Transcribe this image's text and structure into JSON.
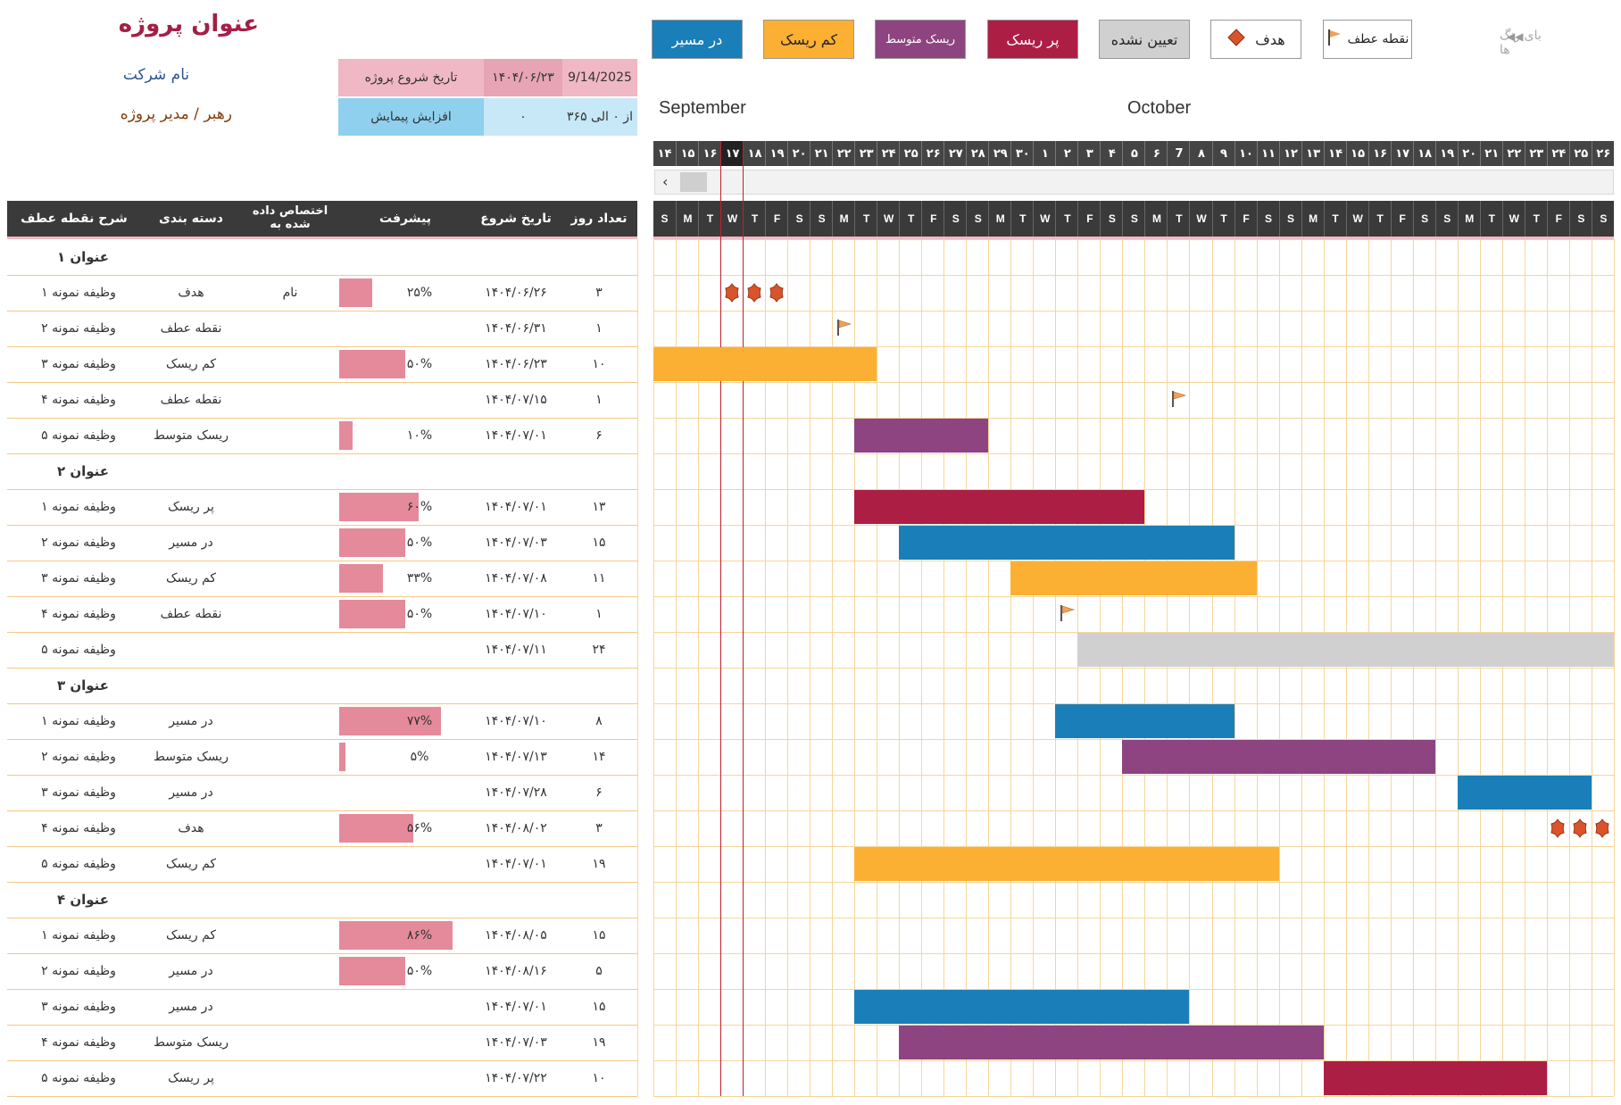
{
  "header": {
    "title": "عنوان پروژه",
    "company": "نام شرکت",
    "manager": "رهبر / مدیر  پروژه"
  },
  "info": {
    "start_label": "تاریخ شروع پروژه",
    "start_shamsi": "۱۴۰۴/۰۶/۲۳",
    "start_gregorian": "9/14/2025",
    "increment_label": "افزایش پیمایش",
    "increment_value": "۰",
    "range_text": "از ۰ الی ۳۶۵"
  },
  "legend": {
    "faded_label": "بای رنگ ها",
    "faded_arrows": "◀◀",
    "items": [
      {
        "label": "در مسیر",
        "bg": "#1a7fb8",
        "color": "#ffffff",
        "name": "legend-on-track"
      },
      {
        "label": "کم ریسک",
        "bg": "#fbb034",
        "color": "#222222",
        "name": "legend-low-risk"
      },
      {
        "label": "ریسک متوسط",
        "bg": "#8e4480",
        "color": "#ffffff",
        "name": "legend-medium-risk"
      },
      {
        "label": "پر ریسک",
        "bg": "#ad1e45",
        "color": "#ffffff",
        "name": "legend-high-risk"
      },
      {
        "label": "تعیین نشده",
        "bg": "#d0d0d0",
        "color": "#222222",
        "name": "legend-unassigned"
      },
      {
        "label": "هدف",
        "bg": "#ffffff",
        "color": "#222222",
        "name": "legend-goal",
        "icon": "diamond"
      },
      {
        "label": "نقطه عطف",
        "bg": "#ffffff",
        "color": "#222222",
        "name": "legend-milestone",
        "icon": "flag"
      }
    ]
  },
  "months": [
    {
      "label": "September",
      "bg": "#fde9cd"
    },
    {
      "label": "October",
      "bg": "#fdd99b"
    }
  ],
  "days": [
    "۱۴",
    "۱۵",
    "۱۶",
    "۱۷",
    "۱۸",
    "۱۹",
    "۲۰",
    "۲۱",
    "۲۲",
    "۲۳",
    "۲۴",
    "۲۵",
    "۲۶",
    "۲۷",
    "۲۸",
    "۲۹",
    "۳۰",
    "۱",
    "۲",
    "۳",
    "۴",
    "۵",
    "۶",
    "7",
    "۸",
    "۹",
    "۱۰",
    "۱۱",
    "۱۲",
    "۱۳",
    "۱۴",
    "۱۵",
    "۱۶",
    "۱۷",
    "۱۸",
    "۱۹",
    "۲۰",
    "۲۱",
    "۲۲",
    "۲۳",
    "۲۴",
    "۲۵",
    "۲۶"
  ],
  "weekdays": [
    "S",
    "M",
    "T",
    "W",
    "T",
    "F",
    "S",
    "S",
    "M",
    "T",
    "W",
    "T",
    "F",
    "S",
    "S",
    "M",
    "T",
    "W",
    "T",
    "F",
    "S",
    "S",
    "M",
    "T",
    "W",
    "T",
    "F",
    "S",
    "S",
    "M",
    "T",
    "W",
    "T",
    "F",
    "S",
    "S",
    "M",
    "T",
    "W",
    "T",
    "F",
    "S",
    "S"
  ],
  "today_index": 3,
  "columns": {
    "days": "تعداد روز",
    "start": "تاریخ شروع",
    "progress": "پیشرفت",
    "assigned": "اختصاص داده شده به",
    "category": "دسته بندی",
    "desc": "شرح نقطه عطف"
  },
  "colors": {
    "on_track": "#1a7fb8",
    "low_risk": "#fbb034",
    "medium_risk": "#8e4480",
    "high_risk": "#ad1e45",
    "unassigned": "#d0d0d0",
    "progress": "#e58a9b",
    "goal": "#d9532b",
    "milestone": "#f0a05a"
  },
  "rows": [
    {
      "type": "section",
      "title": "عنوان ۱"
    },
    {
      "type": "task",
      "desc": "وظیفه نمونه  ۱",
      "category": "هدف",
      "assigned": "نام",
      "progress": 25,
      "progress_text": "۲۵%",
      "start": "۱۴۰۴/۰۶/۲۶",
      "days": "۳",
      "kind": "goal",
      "offset": 3,
      "duration": 3
    },
    {
      "type": "task",
      "desc": "وظیفه نمونه  ۲",
      "category": "نقطه عطف",
      "assigned": "",
      "progress": 0,
      "progress_text": "",
      "start": "۱۴۰۴/۰۶/۳۱",
      "days": "۱",
      "kind": "milestone",
      "offset": 8,
      "duration": 1
    },
    {
      "type": "task",
      "desc": "وظیفه نمونه  ۳",
      "category": "کم ریسک",
      "assigned": "",
      "progress": 50,
      "progress_text": "۵۰%",
      "start": "۱۴۰۴/۰۶/۲۳",
      "days": "۱۰",
      "kind": "low_risk",
      "offset": 0,
      "duration": 10
    },
    {
      "type": "task",
      "desc": "وظیفه نمونه  ۴",
      "category": "نقطه عطف",
      "assigned": "",
      "progress": 0,
      "progress_text": "",
      "start": "۱۴۰۴/۰۷/۱۵",
      "days": "۱",
      "kind": "milestone",
      "offset": 23,
      "duration": 1
    },
    {
      "type": "task",
      "desc": "وظیفه نمونه  ۵",
      "category": "ریسک متوسط",
      "assigned": "",
      "progress": 10,
      "progress_text": "۱۰%",
      "start": "۱۴۰۴/۰۷/۰۱",
      "days": "۶",
      "kind": "medium_risk",
      "offset": 9,
      "duration": 6
    },
    {
      "type": "section",
      "title": "عنوان ۲"
    },
    {
      "type": "task",
      "desc": "وظیفه نمونه  ۱",
      "category": "پر ریسک",
      "assigned": "",
      "progress": 60,
      "progress_text": "۶۰%",
      "start": "۱۴۰۴/۰۷/۰۱",
      "days": "۱۳",
      "kind": "high_risk",
      "offset": 9,
      "duration": 13
    },
    {
      "type": "task",
      "desc": "وظیفه نمونه  ۲",
      "category": "در مسیر",
      "assigned": "",
      "progress": 50,
      "progress_text": "۵۰%",
      "start": "۱۴۰۴/۰۷/۰۳",
      "days": "۱۵",
      "kind": "on_track",
      "offset": 11,
      "duration": 15
    },
    {
      "type": "task",
      "desc": "وظیفه نمونه  ۳",
      "category": "کم ریسک",
      "assigned": "",
      "progress": 33,
      "progress_text": "۳۳%",
      "start": "۱۴۰۴/۰۷/۰۸",
      "days": "۱۱",
      "kind": "low_risk",
      "offset": 16,
      "duration": 11
    },
    {
      "type": "task",
      "desc": "وظیفه نمونه  ۴",
      "category": "نقطه عطف",
      "assigned": "",
      "progress": 50,
      "progress_text": "۵۰%",
      "start": "۱۴۰۴/۰۷/۱۰",
      "days": "۱",
      "kind": "milestone",
      "offset": 18,
      "duration": 1
    },
    {
      "type": "task",
      "desc": "وظیفه نمونه  ۵",
      "category": "",
      "assigned": "",
      "progress": 0,
      "progress_text": "",
      "start": "۱۴۰۴/۰۷/۱۱",
      "days": "۲۴",
      "kind": "unassigned",
      "offset": 19,
      "duration": 24
    },
    {
      "type": "section",
      "title": "عنوان ۳"
    },
    {
      "type": "task",
      "desc": "وظیفه نمونه  ۱",
      "category": "در مسیر",
      "assigned": "",
      "progress": 77,
      "progress_text": "۷۷%",
      "start": "۱۴۰۴/۰۷/۱۰",
      "days": "۸",
      "kind": "on_track",
      "offset": 18,
      "duration": 8
    },
    {
      "type": "task",
      "desc": "وظیفه نمونه  ۲",
      "category": "ریسک متوسط",
      "assigned": "",
      "progress": 5,
      "progress_text": "۵%",
      "start": "۱۴۰۴/۰۷/۱۳",
      "days": "۱۴",
      "kind": "medium_risk",
      "offset": 21,
      "duration": 14
    },
    {
      "type": "task",
      "desc": "وظیفه نمونه  ۳",
      "category": "در مسیر",
      "assigned": "",
      "progress": 0,
      "progress_text": "",
      "start": "۱۴۰۴/۰۷/۲۸",
      "days": "۶",
      "kind": "on_track",
      "offset": 36,
      "duration": 6
    },
    {
      "type": "task",
      "desc": "وظیفه نمونه  ۴",
      "category": "هدف",
      "assigned": "",
      "progress": 56,
      "progress_text": "۵۶%",
      "start": "۱۴۰۴/۰۸/۰۲",
      "days": "۳",
      "kind": "goal",
      "offset": 40,
      "duration": 3
    },
    {
      "type": "task",
      "desc": "وظیفه نمونه  ۵",
      "category": "کم ریسک",
      "assigned": "",
      "progress": 0,
      "progress_text": "",
      "start": "۱۴۰۴/۰۷/۰۱",
      "days": "۱۹",
      "kind": "low_risk",
      "offset": 9,
      "duration": 19
    },
    {
      "type": "section",
      "title": "عنوان ۴"
    },
    {
      "type": "task",
      "desc": "وظیفه نمونه  ۱",
      "category": "کم ریسک",
      "assigned": "",
      "progress": 86,
      "progress_text": "۸۶%",
      "start": "۱۴۰۴/۰۸/۰۵",
      "days": "۱۵",
      "kind": "low_risk",
      "offset": 43,
      "duration": 15
    },
    {
      "type": "task",
      "desc": "وظیفه نمونه  ۲",
      "category": "در مسیر",
      "assigned": "",
      "progress": 50,
      "progress_text": "۵۰%",
      "start": "۱۴۰۴/۰۸/۱۶",
      "days": "۵",
      "kind": "on_track",
      "offset": 54,
      "duration": 5
    },
    {
      "type": "task",
      "desc": "وظیفه نمونه  ۳",
      "category": "در مسیر",
      "assigned": "",
      "progress": 0,
      "progress_text": "",
      "start": "۱۴۰۴/۰۷/۰۱",
      "days": "۱۵",
      "kind": "on_track",
      "offset": 9,
      "duration": 15
    },
    {
      "type": "task",
      "desc": "وظیفه نمونه  ۴",
      "category": "ریسک متوسط",
      "assigned": "",
      "progress": 0,
      "progress_text": "",
      "start": "۱۴۰۴/۰۷/۰۳",
      "days": "۱۹",
      "kind": "medium_risk",
      "offset": 11,
      "duration": 19
    },
    {
      "type": "task",
      "desc": "وظیفه نمونه  ۵",
      "category": "پر ریسک",
      "assigned": "",
      "progress": 0,
      "progress_text": "",
      "start": "۱۴۰۴/۰۷/۲۲",
      "days": "۱۰",
      "kind": "high_risk",
      "offset": 30,
      "duration": 10
    }
  ]
}
